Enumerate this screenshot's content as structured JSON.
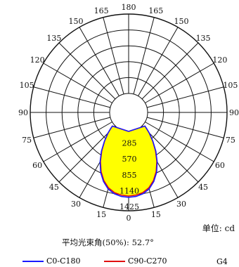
{
  "chart_data": {
    "type": "polar",
    "angle_labels": {
      "left": [
        "15",
        "30",
        "45",
        "60",
        "75",
        "90",
        "105",
        "120",
        "135",
        "150",
        "165"
      ],
      "right": [
        "15",
        "30",
        "45",
        "60",
        "75",
        "90",
        "105",
        "120",
        "135",
        "150",
        "165"
      ],
      "top": "180",
      "bottom": "0"
    },
    "radial_labels": [
      "285",
      "570",
      "855",
      "1140",
      "1425"
    ],
    "radial_max": 1425,
    "series": [
      {
        "name": "C0-C180",
        "color": "#1a1aff",
        "points": [
          [
            0,
            1160
          ],
          [
            5,
            1150
          ],
          [
            10,
            1120
          ],
          [
            15,
            1060
          ],
          [
            20,
            960
          ],
          [
            25,
            830
          ],
          [
            30,
            670
          ],
          [
            35,
            500
          ],
          [
            40,
            330
          ],
          [
            45,
            180
          ],
          [
            48,
            90
          ],
          [
            50,
            40
          ]
        ]
      },
      {
        "name": "C90-C270",
        "color": "#e01010",
        "points": [
          [
            0,
            1160
          ],
          [
            5,
            1150
          ],
          [
            10,
            1120
          ],
          [
            15,
            1060
          ],
          [
            20,
            960
          ],
          [
            25,
            830
          ],
          [
            30,
            670
          ],
          [
            35,
            500
          ],
          [
            40,
            330
          ],
          [
            45,
            180
          ],
          [
            48,
            90
          ],
          [
            50,
            40
          ]
        ]
      }
    ],
    "fill_color": "#ffff00"
  },
  "text": {
    "unit": "单位: cd",
    "beam_angle": "平均光束角(50%): 52.7°",
    "legend_c0": "C0-C180",
    "legend_c90": "C90-C270",
    "ldt_id": "G4"
  }
}
